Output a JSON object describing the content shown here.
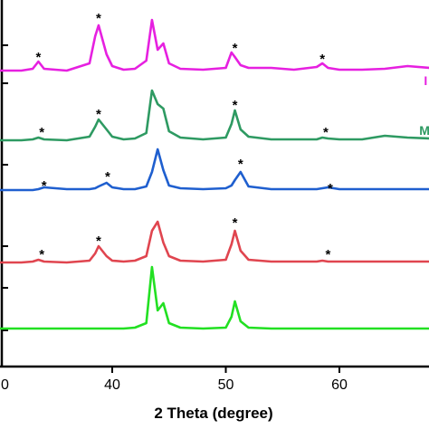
{
  "chart_data": {
    "type": "line",
    "xlabel": "2 Theta (degree)",
    "x": [
      30,
      32,
      33,
      33.5,
      34,
      36,
      38,
      38.5,
      38.8,
      39.5,
      40,
      41,
      42,
      43,
      43.5,
      44,
      44.5,
      45,
      46,
      48,
      50,
      50.5,
      50.8,
      51.3,
      52,
      54,
      56,
      58,
      58.5,
      59,
      60,
      62,
      64,
      66,
      68
    ],
    "series": [
      {
        "color": "#22e022",
        "values": [
          42,
          42,
          42,
          42,
          42,
          42,
          42,
          42,
          42,
          42,
          42,
          42,
          43,
          48,
          110,
          62,
          70,
          48,
          43,
          42,
          43,
          55,
          72,
          50,
          43,
          42,
          42,
          42,
          42,
          42,
          42,
          42,
          42,
          42,
          42
        ]
      },
      {
        "color": "#e0454f",
        "values": [
          115,
          115,
          116,
          118,
          116,
          115,
          117,
          125,
          133,
          122,
          117,
          116,
          117,
          122,
          150,
          160,
          137,
          122,
          117,
          116,
          118,
          135,
          150,
          128,
          118,
          116,
          116,
          116,
          117,
          116,
          116,
          116,
          116,
          116,
          116
        ]
      },
      {
        "color": "#1f5fcf",
        "values": [
          195,
          195,
          195,
          196,
          198,
          196,
          196,
          197,
          199,
          203,
          198,
          196,
          196,
          199,
          215,
          240,
          217,
          200,
          197,
          196,
          197,
          200,
          206,
          215,
          199,
          196,
          196,
          196,
          197,
          198,
          196,
          196,
          196,
          196,
          196
        ]
      },
      {
        "color": "#2e9a62",
        "values": [
          250,
          250,
          251,
          253,
          251,
          250,
          254,
          265,
          273,
          262,
          254,
          251,
          252,
          258,
          305,
          290,
          285,
          260,
          253,
          251,
          253,
          268,
          283,
          262,
          254,
          251,
          251,
          251,
          253,
          252,
          251,
          251,
          255,
          253,
          252
        ]
      },
      {
        "color": "#e620e0",
        "values": [
          327,
          327,
          329,
          337,
          329,
          327,
          335,
          365,
          377,
          345,
          332,
          328,
          329,
          338,
          383,
          350,
          357,
          335,
          329,
          328,
          330,
          347,
          342,
          333,
          330,
          330,
          328,
          331,
          335,
          330,
          328,
          328,
          329,
          332,
          330
        ]
      }
    ],
    "annotations": [
      {
        "text": "*",
        "x": 33.8,
        "y": 127
      },
      {
        "text": "*",
        "x": 38.8,
        "y": 142
      },
      {
        "text": "*",
        "x": 50.8,
        "y": 162
      },
      {
        "text": "*",
        "x": 59,
        "y": 127
      },
      {
        "text": "*",
        "x": 34,
        "y": 203
      },
      {
        "text": "*",
        "x": 39.6,
        "y": 213
      },
      {
        "text": "*",
        "x": 51.3,
        "y": 227
      },
      {
        "text": "*",
        "x": 59.2,
        "y": 200
      },
      {
        "text": "*",
        "x": 33.8,
        "y": 262
      },
      {
        "text": "*",
        "x": 38.8,
        "y": 282
      },
      {
        "text": "*",
        "x": 50.8,
        "y": 292
      },
      {
        "text": "*",
        "x": 58.8,
        "y": 262
      },
      {
        "text": "*",
        "x": 33.5,
        "y": 345
      },
      {
        "text": "*",
        "x": 38.8,
        "y": 388
      },
      {
        "text": "*",
        "x": 50.8,
        "y": 355
      },
      {
        "text": "*",
        "x": 58.5,
        "y": 343
      },
      {
        "text": "I",
        "x": 67.6,
        "y": 317,
        "color": "#e620e0"
      },
      {
        "text": "M",
        "x": 67.5,
        "y": 262,
        "color": "#2e9a62"
      }
    ],
    "xlim": [
      30,
      68
    ],
    "xticks": [
      {
        "value": 30,
        "label": "0"
      },
      40,
      50,
      60
    ],
    "ylim": [
      0,
      405
    ],
    "yticks": [
      40,
      87,
      133,
      223,
      313,
      355
    ]
  }
}
